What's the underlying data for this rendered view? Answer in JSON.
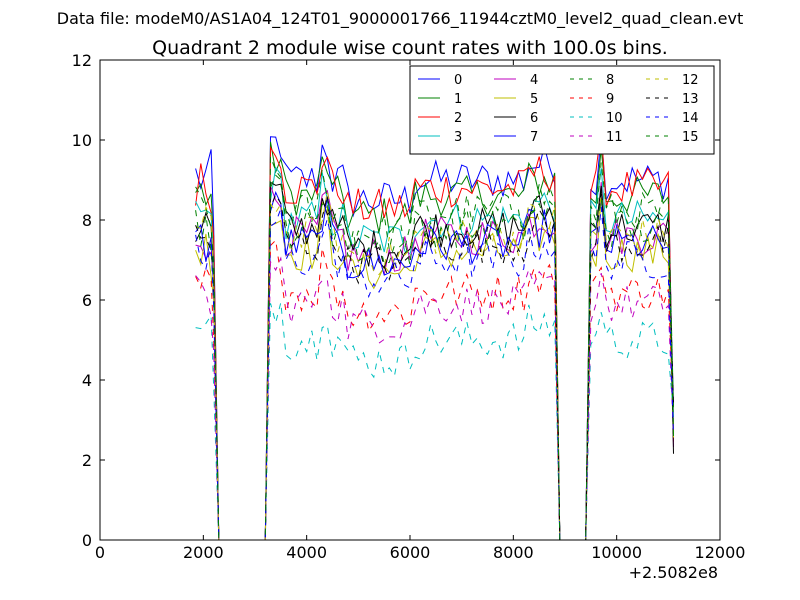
{
  "figure": {
    "suptitle": "Data file: modeM0/AS1A04_124T01_9000001766_11944cztM0_level2_quad_clean.evt",
    "background": "#ffffff"
  },
  "chart_data": {
    "type": "line",
    "title": "Quadrant 2 module wise count rates with 100.0s bins.",
    "xlabel": "",
    "ylabel": "",
    "x_offset_label": "+2.5082e8",
    "xlim": [
      0,
      12000
    ],
    "ylim": [
      0,
      12
    ],
    "xticks": [
      0,
      2000,
      4000,
      6000,
      8000,
      10000,
      12000
    ],
    "xtick_labels": [
      "0",
      "2000",
      "4000",
      "6000",
      "8000",
      "10000",
      "12000"
    ],
    "yticks": [
      0,
      2,
      4,
      6,
      8,
      10,
      12
    ],
    "ytick_labels": [
      "0",
      "2",
      "4",
      "6",
      "8",
      "10",
      "12"
    ],
    "grid": false,
    "legend_location": "top-right",
    "legend_columns": 4,
    "segments": [
      {
        "x_start": 1850,
        "x_end": 2300,
        "y_drop_end": 2300
      },
      {
        "x_start": 3300,
        "x_end": 8800
      },
      {
        "x_start": 9500,
        "x_end": 11100
      }
    ],
    "series": [
      {
        "name": "0",
        "color": "#0000ff",
        "dash": "solid",
        "level": 9.0
      },
      {
        "name": "1",
        "color": "#008000",
        "dash": "solid",
        "level": 8.6
      },
      {
        "name": "2",
        "color": "#ff0000",
        "dash": "solid",
        "level": 8.8
      },
      {
        "name": "3",
        "color": "#00bfbf",
        "dash": "solid",
        "level": 8.0
      },
      {
        "name": "4",
        "color": "#bf00bf",
        "dash": "solid",
        "level": 7.6
      },
      {
        "name": "5",
        "color": "#bfbf00",
        "dash": "solid",
        "level": 7.2
      },
      {
        "name": "6",
        "color": "#000000",
        "dash": "solid",
        "level": 7.8
      },
      {
        "name": "7",
        "color": "#0000ff",
        "dash": "solid",
        "level": 7.4
      },
      {
        "name": "8",
        "color": "#008000",
        "dash": "dashed",
        "level": 8.2
      },
      {
        "name": "9",
        "color": "#ff0000",
        "dash": "dashed",
        "level": 6.2
      },
      {
        "name": "10",
        "color": "#00bfbf",
        "dash": "dashed",
        "level": 5.0
      },
      {
        "name": "11",
        "color": "#bf00bf",
        "dash": "dashed",
        "level": 5.9
      },
      {
        "name": "12",
        "color": "#bfbf00",
        "dash": "dashed",
        "level": 7.6
      },
      {
        "name": "13",
        "color": "#000000",
        "dash": "dashed",
        "level": 7.4
      },
      {
        "name": "14",
        "color": "#0000ff",
        "dash": "dashed",
        "level": 7.0
      },
      {
        "name": "15",
        "color": "#008000",
        "dash": "dashed",
        "level": 7.8
      }
    ]
  }
}
